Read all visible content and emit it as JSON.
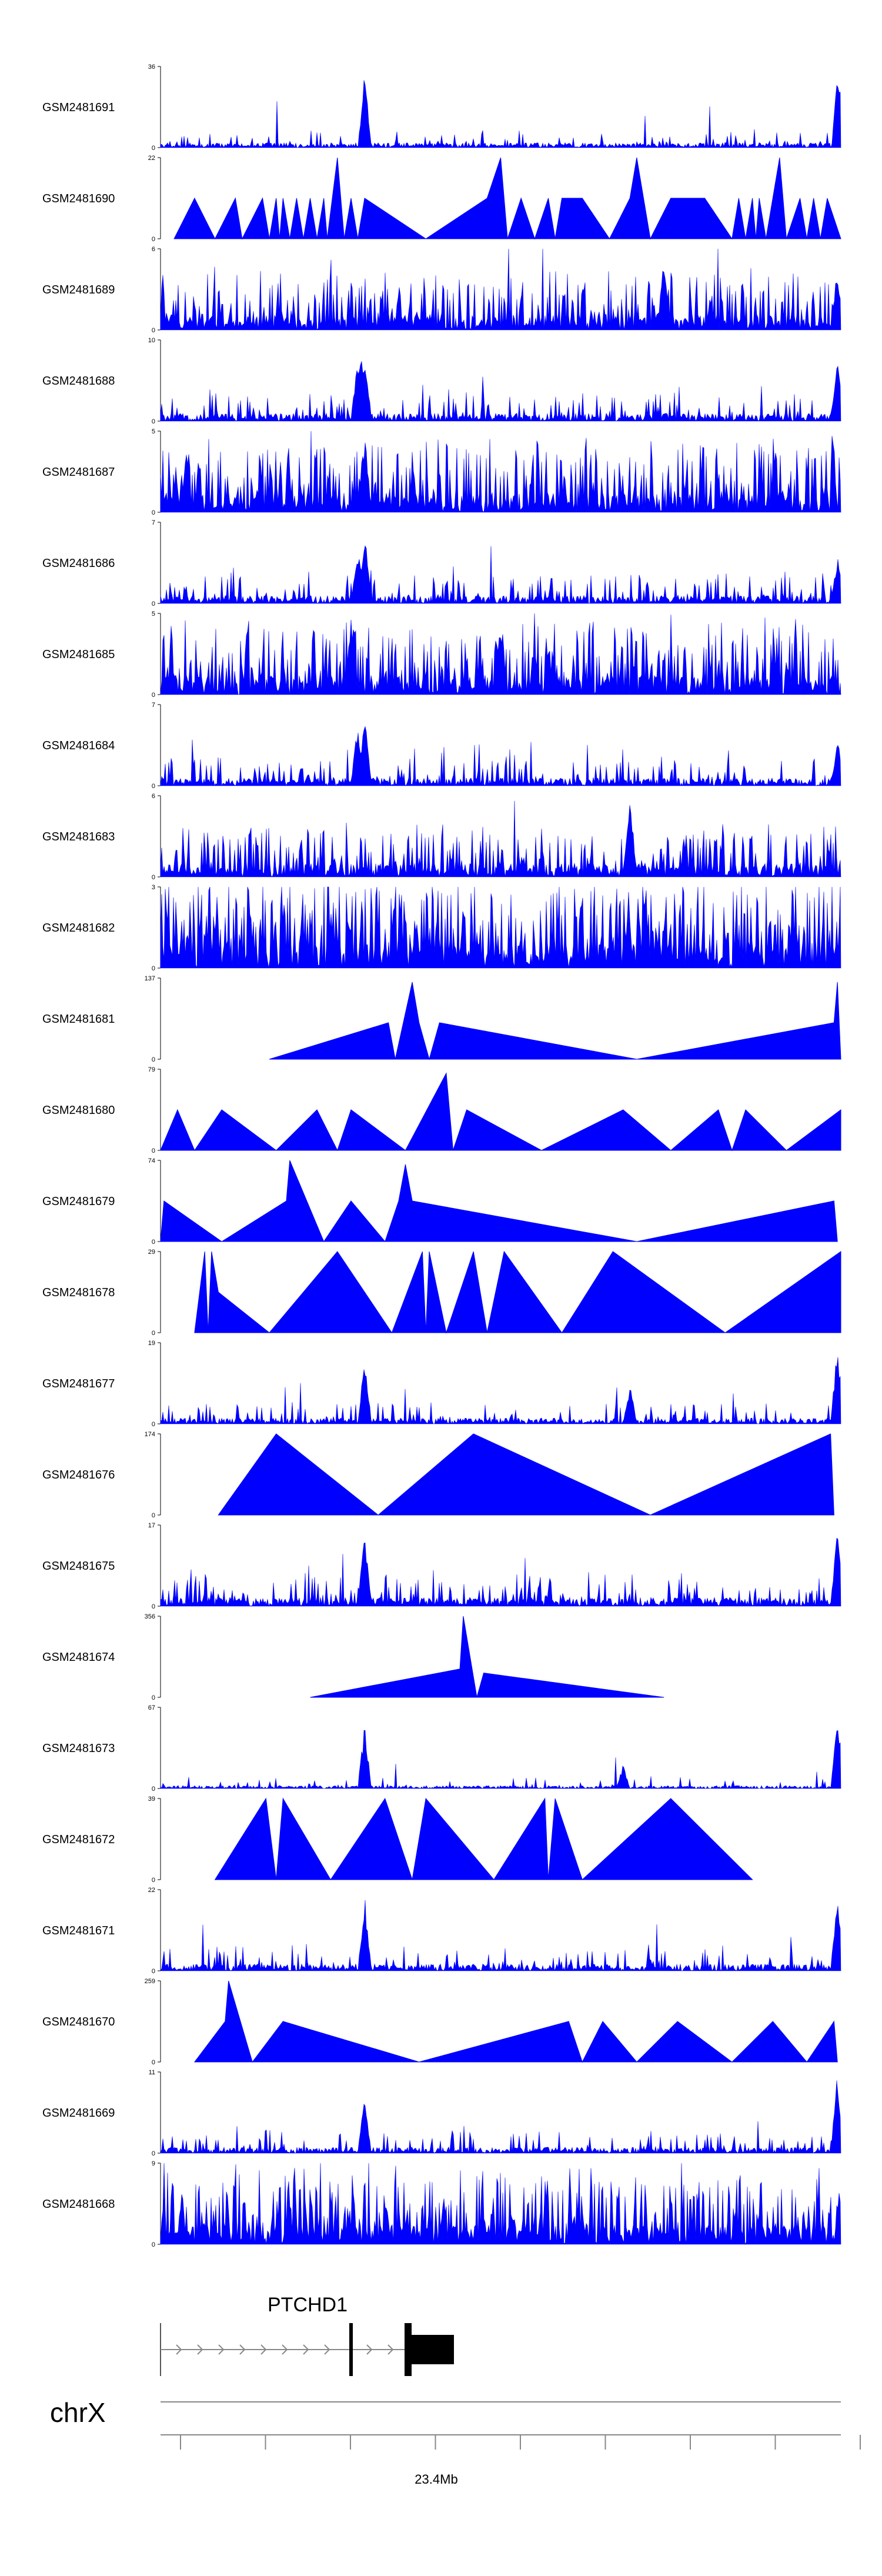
{
  "chart_data": {
    "type": "area",
    "title": "",
    "fill_color": "#0000ff",
    "x_axis": {
      "label": "23.4Mb",
      "ticks": 9,
      "chromosome": "chrX"
    },
    "gene": {
      "name": "PTCHD1",
      "strand": "+"
    },
    "tracks": [
      {
        "name": "GSM2481691",
        "ymax": 36,
        "ymin": 0,
        "style": "dense",
        "density": 1.0,
        "peaks": [
          [
            0.3,
            0.95
          ],
          [
            0.996,
            1.0
          ]
        ]
      },
      {
        "name": "GSM2481690",
        "ymax": 22,
        "ymin": 0,
        "style": "sparse",
        "points": [
          [
            0.02,
            0
          ],
          [
            0.05,
            0.5
          ],
          [
            0.08,
            0
          ],
          [
            0.11,
            0.5
          ],
          [
            0.12,
            0
          ],
          [
            0.15,
            0.5
          ],
          [
            0.16,
            0
          ],
          [
            0.17,
            0.5
          ],
          [
            0.175,
            0
          ],
          [
            0.18,
            0.5
          ],
          [
            0.19,
            0
          ],
          [
            0.2,
            0.5
          ],
          [
            0.21,
            0
          ],
          [
            0.22,
            0.5
          ],
          [
            0.23,
            0
          ],
          [
            0.24,
            0.5
          ],
          [
            0.245,
            0
          ],
          [
            0.26,
            1.0
          ],
          [
            0.27,
            0
          ],
          [
            0.28,
            0.5
          ],
          [
            0.29,
            0
          ],
          [
            0.3,
            0.5
          ],
          [
            0.39,
            0
          ],
          [
            0.48,
            0.5
          ],
          [
            0.5,
            1.0
          ],
          [
            0.51,
            0
          ],
          [
            0.53,
            0.5
          ],
          [
            0.55,
            0
          ],
          [
            0.57,
            0.5
          ],
          [
            0.58,
            0
          ],
          [
            0.59,
            0.5
          ],
          [
            0.62,
            0.5
          ],
          [
            0.66,
            0
          ],
          [
            0.69,
            0.5
          ],
          [
            0.7,
            1.0
          ],
          [
            0.72,
            0
          ],
          [
            0.75,
            0.5
          ],
          [
            0.8,
            0.5
          ],
          [
            0.84,
            0
          ],
          [
            0.85,
            0.5
          ],
          [
            0.86,
            0
          ],
          [
            0.87,
            0.5
          ],
          [
            0.875,
            0
          ],
          [
            0.88,
            0.5
          ],
          [
            0.89,
            0
          ],
          [
            0.9,
            0.5
          ],
          [
            0.91,
            1.0
          ],
          [
            0.92,
            0
          ],
          [
            0.94,
            0.5
          ],
          [
            0.95,
            0
          ],
          [
            0.96,
            0.5
          ],
          [
            0.97,
            0
          ],
          [
            0.98,
            0.5
          ],
          [
            1.0,
            0
          ]
        ]
      },
      {
        "name": "GSM2481689",
        "ymax": 6,
        "ymin": 0,
        "style": "dense",
        "density": 3.2,
        "peaks": [
          [
            0.74,
            0.9
          ],
          [
            0.995,
            0.8
          ]
        ]
      },
      {
        "name": "GSM2481688",
        "ymax": 10,
        "ymin": 0,
        "style": "dense",
        "density": 1.6,
        "peaks": [
          [
            0.29,
            0.85
          ],
          [
            0.295,
            0.9
          ],
          [
            0.3,
            0.95
          ],
          [
            0.995,
            0.8
          ]
        ]
      },
      {
        "name": "GSM2481687",
        "ymax": 5,
        "ymin": 0,
        "style": "dense",
        "density": 4.0,
        "peaks": [
          [
            0.3,
            1.0
          ]
        ]
      },
      {
        "name": "GSM2481686",
        "ymax": 7,
        "ymin": 0,
        "style": "dense",
        "density": 1.6,
        "peaks": [
          [
            0.29,
            0.7
          ],
          [
            0.3,
            0.9
          ],
          [
            0.995,
            0.6
          ]
        ]
      },
      {
        "name": "GSM2481685",
        "ymax": 5,
        "ymin": 0,
        "style": "dense",
        "density": 4.0,
        "peaks": [
          [
            0.28,
            0.95
          ],
          [
            0.5,
            0.9
          ]
        ]
      },
      {
        "name": "GSM2481684",
        "ymax": 7,
        "ymin": 0,
        "style": "dense",
        "density": 1.6,
        "peaks": [
          [
            0.29,
            0.8
          ],
          [
            0.3,
            0.9
          ],
          [
            0.995,
            0.6
          ]
        ]
      },
      {
        "name": "GSM2481683",
        "ymax": 6,
        "ymin": 0,
        "style": "dense",
        "density": 2.8,
        "peaks": [
          [
            0.69,
            0.95
          ]
        ]
      },
      {
        "name": "GSM2481682",
        "ymax": 3,
        "ymin": 0,
        "style": "dense",
        "density": 5.0,
        "peaks": []
      },
      {
        "name": "GSM2481681",
        "ymax": 137,
        "ymin": 0,
        "style": "sparse",
        "points": [
          [
            0.16,
            0
          ],
          [
            0.335,
            0.45
          ],
          [
            0.345,
            0
          ],
          [
            0.37,
            0.95
          ],
          [
            0.38,
            0.45
          ],
          [
            0.395,
            0
          ],
          [
            0.41,
            0.45
          ],
          [
            0.7,
            0
          ],
          [
            0.99,
            0.45
          ],
          [
            0.995,
            0.95
          ],
          [
            1.0,
            0
          ]
        ]
      },
      {
        "name": "GSM2481680",
        "ymax": 79,
        "ymin": 0,
        "style": "sparse",
        "points": [
          [
            0.0,
            0
          ],
          [
            0.025,
            0.5
          ],
          [
            0.05,
            0
          ],
          [
            0.09,
            0.5
          ],
          [
            0.17,
            0
          ],
          [
            0.23,
            0.5
          ],
          [
            0.26,
            0
          ],
          [
            0.28,
            0.5
          ],
          [
            0.36,
            0
          ],
          [
            0.42,
            0.95
          ],
          [
            0.43,
            0
          ],
          [
            0.45,
            0.5
          ],
          [
            0.56,
            0
          ],
          [
            0.68,
            0.5
          ],
          [
            0.75,
            0
          ],
          [
            0.82,
            0.5
          ],
          [
            0.84,
            0
          ],
          [
            0.86,
            0.5
          ],
          [
            0.92,
            0
          ],
          [
            1.0,
            0.5
          ],
          [
            1.0,
            0
          ]
        ]
      },
      {
        "name": "GSM2481679",
        "ymax": 74,
        "ymin": 0,
        "style": "sparse",
        "points": [
          [
            0.0,
            0
          ],
          [
            0.005,
            0.5
          ],
          [
            0.09,
            0
          ],
          [
            0.185,
            0.5
          ],
          [
            0.19,
            1.0
          ],
          [
            0.24,
            0
          ],
          [
            0.28,
            0.5
          ],
          [
            0.33,
            0
          ],
          [
            0.35,
            0.5
          ],
          [
            0.36,
            0.95
          ],
          [
            0.37,
            0.5
          ],
          [
            0.7,
            0
          ],
          [
            0.99,
            0.5
          ],
          [
            0.995,
            0
          ]
        ]
      },
      {
        "name": "GSM2481678",
        "ymax": 29,
        "ymin": 0,
        "style": "sparse",
        "points": [
          [
            0.05,
            0
          ],
          [
            0.065,
            1.0
          ],
          [
            0.07,
            0
          ],
          [
            0.075,
            1.0
          ],
          [
            0.085,
            0.5
          ],
          [
            0.16,
            0
          ],
          [
            0.26,
            1.0
          ],
          [
            0.34,
            0
          ],
          [
            0.385,
            1.0
          ],
          [
            0.39,
            0
          ],
          [
            0.395,
            1.0
          ],
          [
            0.42,
            0
          ],
          [
            0.46,
            1.0
          ],
          [
            0.48,
            0
          ],
          [
            0.505,
            1.0
          ],
          [
            0.59,
            0
          ],
          [
            0.665,
            1.0
          ],
          [
            0.83,
            0
          ],
          [
            1.0,
            1.0
          ],
          [
            1.0,
            0
          ]
        ]
      },
      {
        "name": "GSM2481677",
        "ymax": 19,
        "ymin": 0,
        "style": "dense",
        "density": 1.2,
        "peaks": [
          [
            0.3,
            0.85
          ],
          [
            0.69,
            0.5
          ],
          [
            0.995,
            1.0
          ]
        ]
      },
      {
        "name": "GSM2481676",
        "ymax": 174,
        "ymin": 0,
        "style": "sparse",
        "points": [
          [
            0.085,
            0
          ],
          [
            0.17,
            1.0
          ],
          [
            0.32,
            0
          ],
          [
            0.46,
            1.0
          ],
          [
            0.72,
            0
          ],
          [
            0.985,
            1.0
          ],
          [
            0.99,
            0
          ]
        ]
      },
      {
        "name": "GSM2481675",
        "ymax": 17,
        "ymin": 0,
        "style": "dense",
        "density": 1.8,
        "peaks": [
          [
            0.3,
            0.95
          ],
          [
            0.995,
            1.0
          ]
        ]
      },
      {
        "name": "GSM2481674",
        "ymax": 356,
        "ymin": 0,
        "style": "sparse",
        "points": [
          [
            0.22,
            0
          ],
          [
            0.44,
            0.35
          ],
          [
            0.445,
            1.0
          ],
          [
            0.465,
            0
          ],
          [
            0.475,
            0.3
          ],
          [
            0.74,
            0
          ]
        ]
      },
      {
        "name": "GSM2481673",
        "ymax": 67,
        "ymin": 0,
        "style": "dense",
        "density": 0.6,
        "peaks": [
          [
            0.3,
            0.8
          ],
          [
            0.68,
            0.3
          ],
          [
            0.995,
            1.0
          ]
        ]
      },
      {
        "name": "GSM2481672",
        "ymax": 39,
        "ymin": 0,
        "style": "sparse",
        "points": [
          [
            0.08,
            0
          ],
          [
            0.155,
            1.0
          ],
          [
            0.17,
            0
          ],
          [
            0.18,
            1.0
          ],
          [
            0.25,
            0
          ],
          [
            0.33,
            1.0
          ],
          [
            0.37,
            0
          ],
          [
            0.39,
            1.0
          ],
          [
            0.49,
            0
          ],
          [
            0.565,
            1.0
          ],
          [
            0.57,
            0
          ],
          [
            0.58,
            1.0
          ],
          [
            0.62,
            0
          ],
          [
            0.75,
            1.0
          ],
          [
            0.87,
            0
          ]
        ]
      },
      {
        "name": "GSM2481671",
        "ymax": 22,
        "ymin": 0,
        "style": "dense",
        "density": 1.4,
        "peaks": [
          [
            0.3,
            0.95
          ],
          [
            0.995,
            1.0
          ]
        ]
      },
      {
        "name": "GSM2481670",
        "ymax": 259,
        "ymin": 0,
        "style": "sparse",
        "points": [
          [
            0.05,
            0
          ],
          [
            0.095,
            0.5
          ],
          [
            0.1,
            1.0
          ],
          [
            0.135,
            0
          ],
          [
            0.18,
            0.5
          ],
          [
            0.38,
            0
          ],
          [
            0.6,
            0.5
          ],
          [
            0.62,
            0
          ],
          [
            0.65,
            0.5
          ],
          [
            0.7,
            0
          ],
          [
            0.76,
            0.5
          ],
          [
            0.84,
            0
          ],
          [
            0.9,
            0.5
          ],
          [
            0.95,
            0
          ],
          [
            0.99,
            0.5
          ],
          [
            0.995,
            0
          ]
        ]
      },
      {
        "name": "GSM2481669",
        "ymax": 11,
        "ymin": 0,
        "style": "dense",
        "density": 1.2,
        "peaks": [
          [
            0.3,
            0.7
          ],
          [
            0.995,
            1.0
          ]
        ]
      },
      {
        "name": "GSM2481668",
        "ymax": 9,
        "ymin": 0,
        "style": "dense",
        "density": 4.0,
        "peaks": []
      }
    ]
  }
}
